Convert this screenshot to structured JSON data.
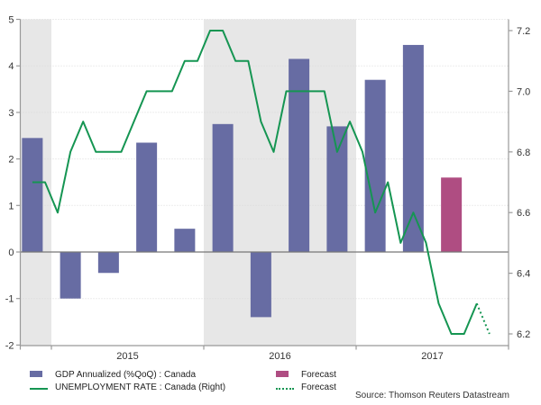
{
  "chart_data": {
    "type": "combo",
    "title": "",
    "source_note": "Source: Thomson Reuters Datastream",
    "left_axis": {
      "ticks": [
        5,
        4,
        3,
        2,
        1,
        0,
        -1,
        -2
      ],
      "ylim": [
        -2,
        5
      ],
      "grid": "dotted-horizontal"
    },
    "right_axis": {
      "tick_labels": [
        "7.2",
        "7.0",
        "6.8",
        "6.6",
        "6.4",
        "6.2"
      ],
      "tick_values": [
        7.2,
        7.0,
        6.8,
        6.6,
        6.4,
        6.2
      ],
      "visible_range": [
        6.2,
        7.2
      ]
    },
    "x_axis": {
      "year_labels": [
        "2015",
        "2016",
        "2017"
      ],
      "range": "Nov 2014 - Dec 2017"
    },
    "shaded_bands": [
      "Q4 2014",
      "year 2016"
    ],
    "bars": {
      "name": "GDP Annualized (%QoQ) : Canada",
      "quarters": [
        "Q4 2014",
        "Q1 2015",
        "Q2 2015",
        "Q3 2015",
        "Q4 2015",
        "Q1 2016",
        "Q2 2016",
        "Q3 2016",
        "Q4 2016",
        "Q1 2017",
        "Q2 2017"
      ],
      "values": [
        2.45,
        -1.0,
        -0.45,
        2.35,
        0.5,
        2.75,
        -1.4,
        4.15,
        2.7,
        3.7,
        4.45
      ],
      "forecast": {
        "name": "Forecast",
        "quarter": "Q3 2017",
        "value": 1.6
      }
    },
    "line": {
      "name": "UNEMPLOYMENT RATE : Canada (Right)",
      "months": [
        "Nov 2014",
        "Dec 2014",
        "Jan 2015",
        "Feb 2015",
        "Mar 2015",
        "Apr 2015",
        "May 2015",
        "Jun 2015",
        "Jul 2015",
        "Aug 2015",
        "Sep 2015",
        "Oct 2015",
        "Nov 2015",
        "Dec 2015",
        "Jan 2016",
        "Feb 2016",
        "Mar 2016",
        "Apr 2016",
        "May 2016",
        "Jun 2016",
        "Jul 2016",
        "Aug 2016",
        "Sep 2016",
        "Oct 2016",
        "Nov 2016",
        "Dec 2016",
        "Jan 2017",
        "Feb 2017",
        "Mar 2017",
        "Apr 2017",
        "May 2017",
        "Jun 2017",
        "Jul 2017",
        "Aug 2017",
        "Sep 2017",
        "Oct 2017"
      ],
      "values": [
        6.7,
        6.7,
        6.6,
        6.8,
        6.9,
        6.8,
        6.8,
        6.8,
        6.9,
        7.0,
        7.0,
        7.0,
        7.1,
        7.1,
        7.2,
        7.2,
        7.1,
        7.1,
        6.9,
        6.8,
        7.0,
        7.0,
        7.0,
        7.0,
        6.8,
        6.9,
        6.8,
        6.6,
        6.7,
        6.5,
        6.6,
        6.5,
        6.3,
        6.2,
        6.2,
        6.3
      ],
      "forecast": {
        "name": "Forecast",
        "months": [
          "Nov 2017"
        ],
        "values": [
          6.2
        ]
      }
    },
    "colors": {
      "bar": "#676CA3",
      "bar_forecast": "#AF4D82",
      "line": "#159552",
      "band": "#E7E7E7",
      "grid": "#D9D9D9",
      "zero_line": "#777777",
      "axis": "#999999",
      "text": "#333333"
    }
  },
  "legend": {
    "items": [
      {
        "label": "GDP Annualized (%QoQ) : Canada",
        "swatch": "bar"
      },
      {
        "label": "UNEMPLOYMENT RATE : Canada (Right)",
        "swatch": "line"
      },
      {
        "label": "Forecast",
        "swatch": "bar-forecast"
      },
      {
        "label": "Forecast",
        "swatch": "line-dotted"
      }
    ]
  }
}
